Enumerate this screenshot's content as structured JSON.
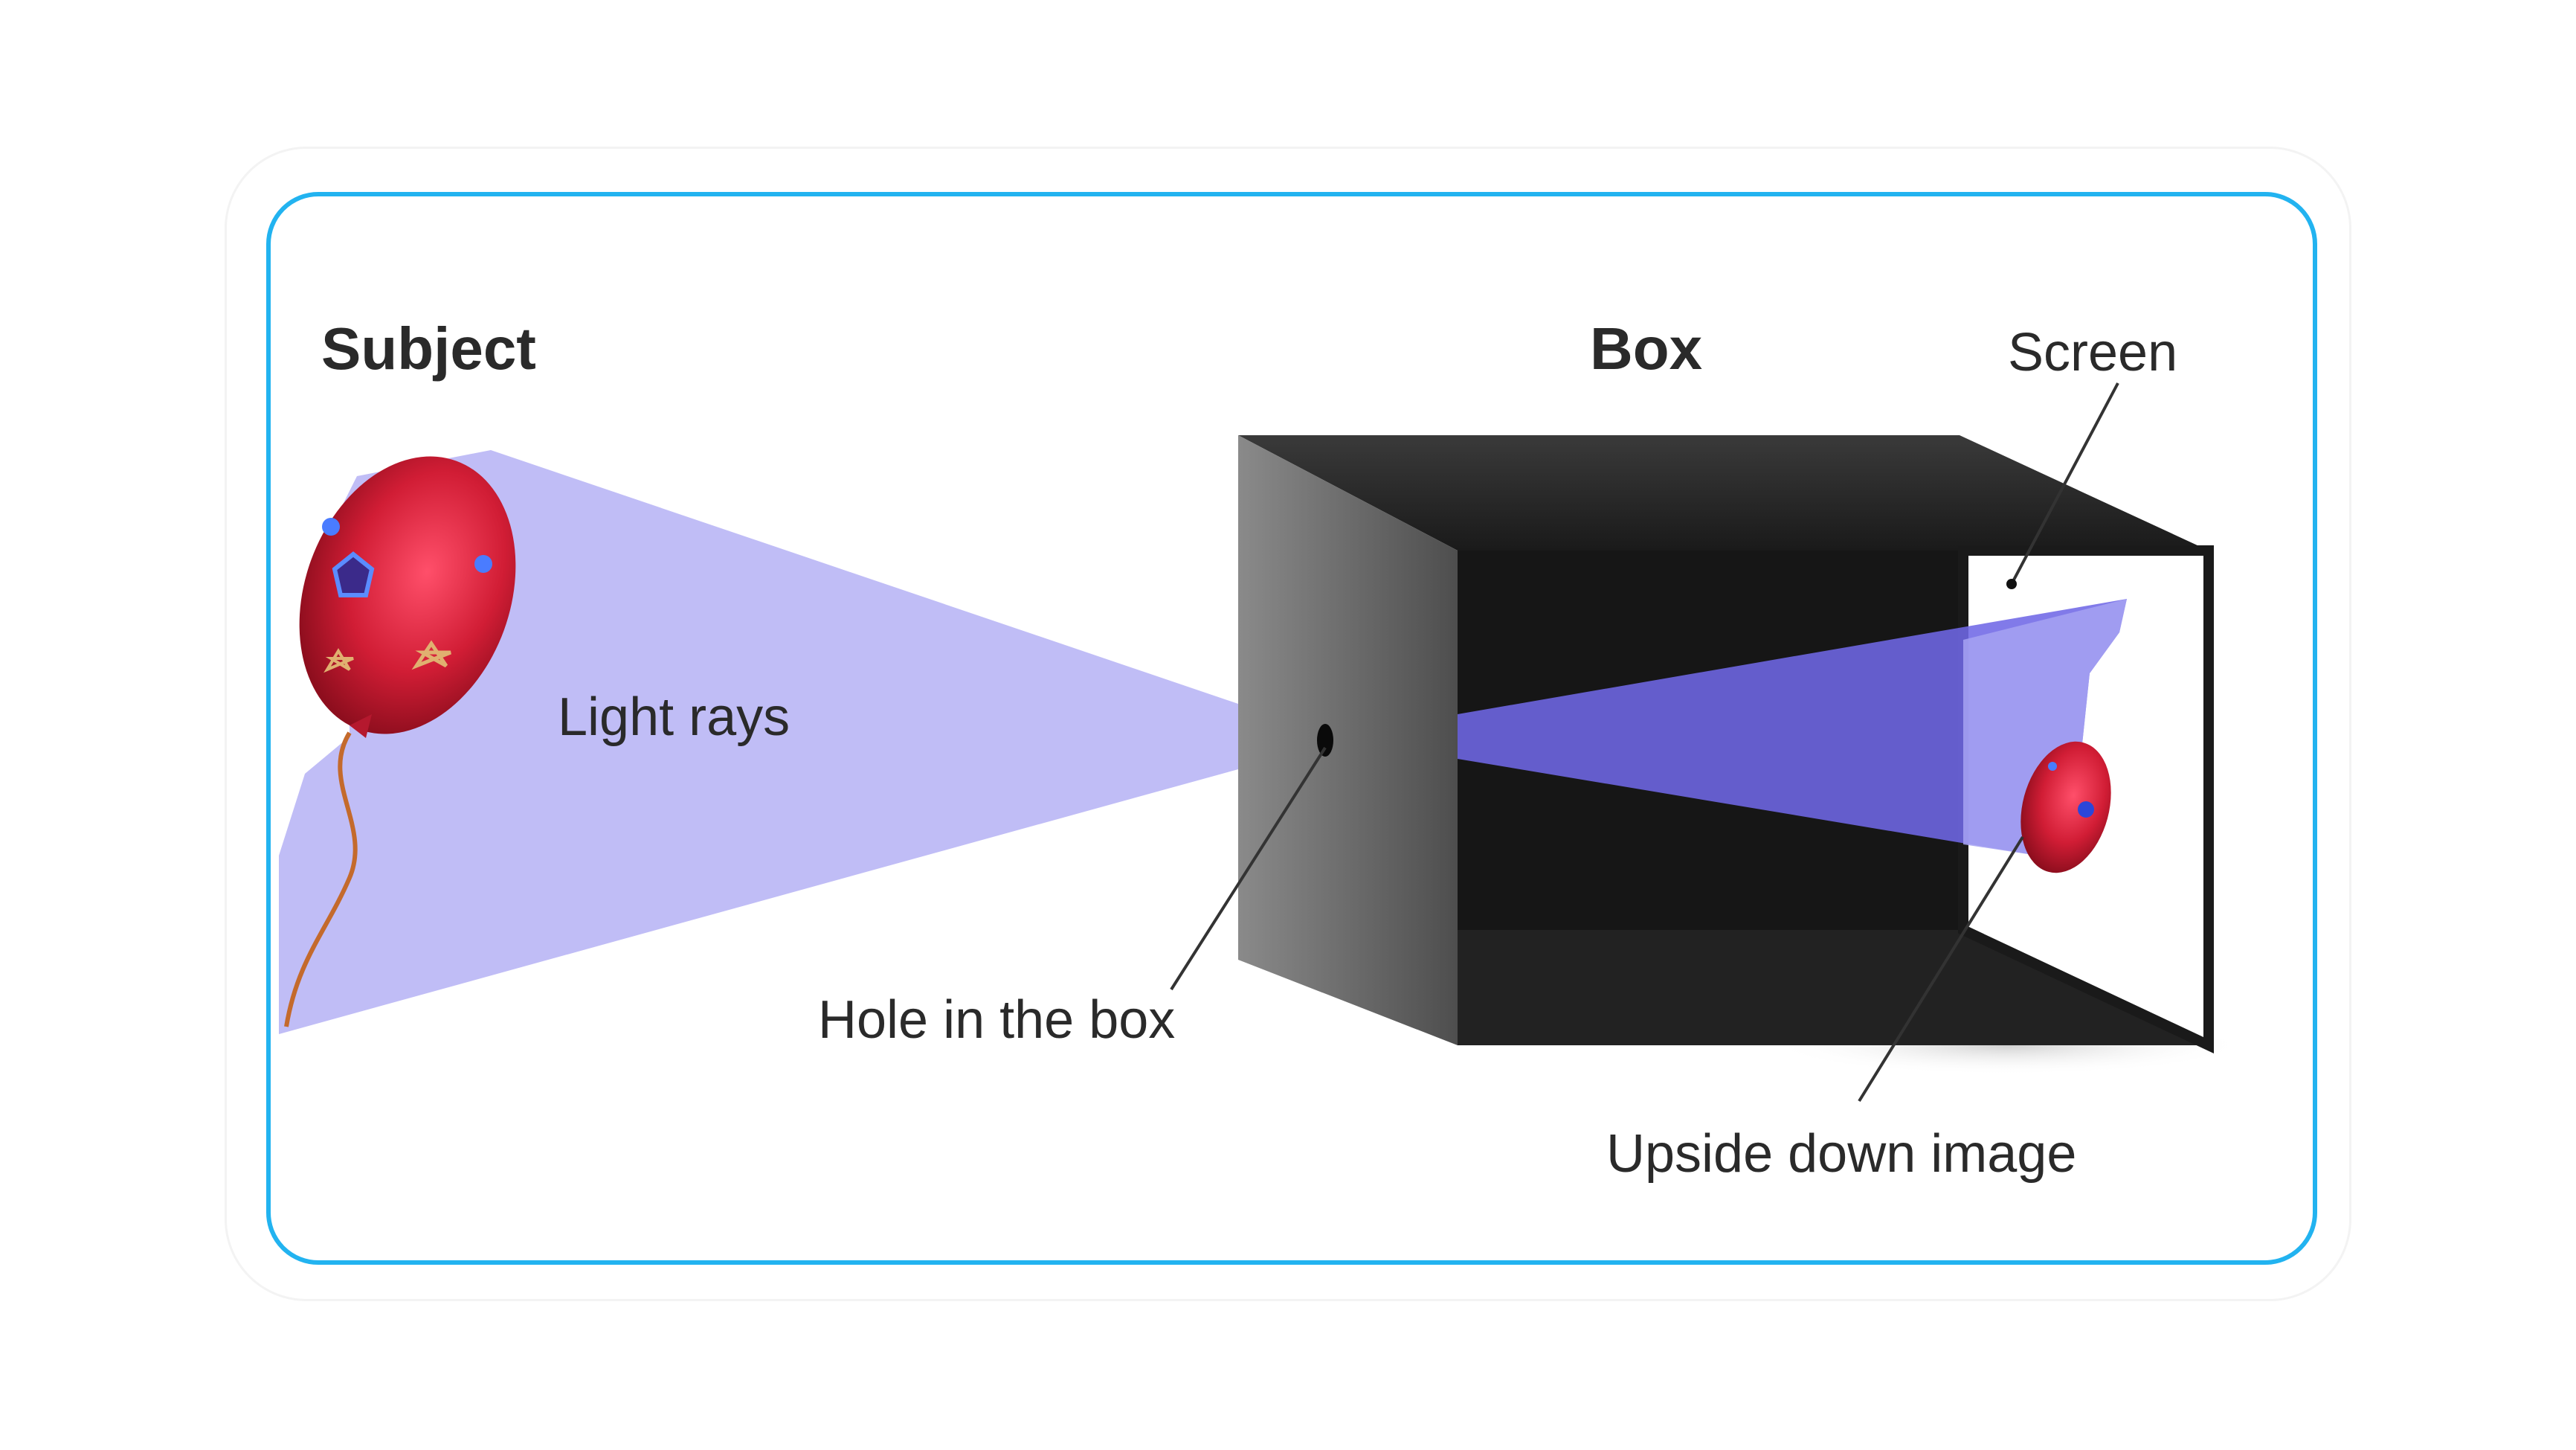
{
  "labels": {
    "subject": "Subject",
    "box": "Box",
    "screen": "Screen",
    "light_rays": "Light rays",
    "hole": "Hole in the  box",
    "upside_down": "Upside down image"
  },
  "colors": {
    "frame_border": "#22b3f0",
    "light_rays": "#b9b6f5",
    "light_rays_inside": "#6f68e6",
    "balloon": "#d4203a",
    "box_dark": "#1c1c1c",
    "box_front": "#6b6b6b",
    "screen": "#ffffff"
  }
}
